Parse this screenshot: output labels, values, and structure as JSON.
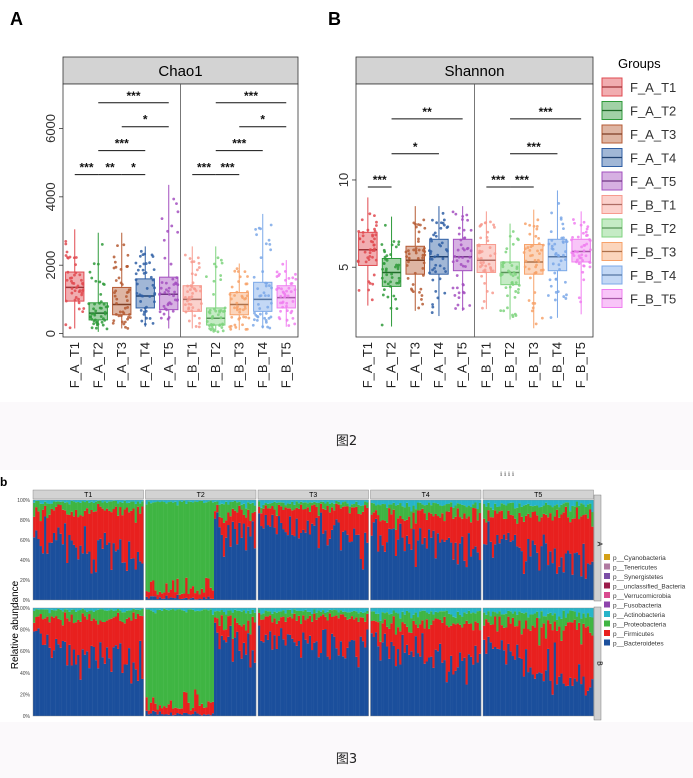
{
  "figure2": {
    "caption": "图2",
    "legend": {
      "title": "Groups",
      "items": [
        "F_A_T1",
        "F_A_T2",
        "F_A_T3",
        "F_A_T4",
        "F_A_T5",
        "F_B_T1",
        "F_B_T2",
        "F_B_T3",
        "F_B_T4",
        "F_B_T5"
      ]
    },
    "colors": [
      "#e0494f",
      "#2e9a3a",
      "#b55a33",
      "#2f5fa5",
      "#a34fbf",
      "#f79a8e",
      "#7ed37e",
      "#f7a26a",
      "#7ba8e8",
      "#f07ef0"
    ],
    "panelA": {
      "letter": "A",
      "strip": "Chao1"
    },
    "panelB": {
      "letter": "B",
      "strip": "Shannon"
    }
  },
  "figure3": {
    "caption": "图3",
    "panel_letter": "b",
    "top_text": "ℹ ℹ ℹ ℹ",
    "ylabel": "Relative abundance",
    "columns": [
      "T1",
      "T2",
      "T3",
      "T4",
      "T5"
    ],
    "rows": [
      "A",
      "B"
    ],
    "yticks": [
      "0%",
      "20%",
      "40%",
      "60%",
      "80%",
      "100%"
    ],
    "legend": [
      {
        "label": "p__Cyanobacteria",
        "color": "#d4a017"
      },
      {
        "label": "p__Tenericutes",
        "color": "#b07aa1"
      },
      {
        "label": "p__Synergistetes",
        "color": "#7b4fa6"
      },
      {
        "label": "p__unclassified_Bacteria",
        "color": "#9b1d4a"
      },
      {
        "label": "p__Verrucomicrobia",
        "color": "#d94b8f"
      },
      {
        "label": "p__Fusobacteria",
        "color": "#8e44ad"
      },
      {
        "label": "p__Actinobacteria",
        "color": "#27b4c9"
      },
      {
        "label": "p__Proteobacteria",
        "color": "#3fb543"
      },
      {
        "label": "p__Firmicutes",
        "color": "#e8201f"
      },
      {
        "label": "p__Bacteroidetes",
        "color": "#1b4f9c"
      }
    ]
  },
  "chart_data": [
    {
      "type": "box",
      "title": "Chao1",
      "categories": [
        "F_A_T1",
        "F_A_T2",
        "F_A_T3",
        "F_A_T4",
        "F_A_T5",
        "F_B_T1",
        "F_B_T2",
        "F_B_T3",
        "F_B_T4",
        "F_B_T5"
      ],
      "ylim": [
        -100,
        7300
      ],
      "yticks": [
        0,
        2000,
        4000,
        6000
      ],
      "boxes": [
        {
          "min": 150,
          "q1": 950,
          "median": 1350,
          "q3": 1800,
          "max": 3050
        },
        {
          "min": 50,
          "q1": 400,
          "median": 600,
          "q3": 900,
          "max": 2950
        },
        {
          "min": 150,
          "q1": 550,
          "median": 850,
          "q3": 1350,
          "max": 2950
        },
        {
          "min": 200,
          "q1": 750,
          "median": 1100,
          "q3": 1600,
          "max": 2550
        },
        {
          "min": 150,
          "q1": 700,
          "median": 1150,
          "q3": 1650,
          "max": 4350
        },
        {
          "min": 150,
          "q1": 650,
          "median": 1000,
          "q3": 1400,
          "max": 2550
        },
        {
          "min": 50,
          "q1": 250,
          "median": 450,
          "q3": 750,
          "max": 2550
        },
        {
          "min": 100,
          "q1": 550,
          "median": 850,
          "q3": 1200,
          "max": 2050
        },
        {
          "min": 150,
          "q1": 650,
          "median": 1000,
          "q3": 1500,
          "max": 3500
        },
        {
          "min": 200,
          "q1": 750,
          "median": 1050,
          "q3": 1400,
          "max": 2150
        }
      ],
      "significance": [
        {
          "from": 0,
          "to": 1,
          "y": 4650,
          "label": "***"
        },
        {
          "from": 1,
          "to": 2,
          "y": 4650,
          "label": "**"
        },
        {
          "from": 2,
          "to": 3,
          "y": 4650,
          "label": "*"
        },
        {
          "from": 1,
          "to": 3,
          "y": 5350,
          "label": "***"
        },
        {
          "from": 2,
          "to": 4,
          "y": 6050,
          "label": "*"
        },
        {
          "from": 1,
          "to": 4,
          "y": 6750,
          "label": "***"
        },
        {
          "from": 5,
          "to": 6,
          "y": 4650,
          "label": "***"
        },
        {
          "from": 6,
          "to": 7,
          "y": 4650,
          "label": "***"
        },
        {
          "from": 6,
          "to": 8,
          "y": 5350,
          "label": "***"
        },
        {
          "from": 7,
          "to": 9,
          "y": 6050,
          "label": "*"
        },
        {
          "from": 6,
          "to": 9,
          "y": 6750,
          "label": "***"
        }
      ]
    },
    {
      "type": "box",
      "title": "Shannon",
      "categories": [
        "F_A_T1",
        "F_A_T2",
        "F_A_T3",
        "F_A_T4",
        "F_A_T5",
        "F_B_T1",
        "F_B_T2",
        "F_B_T3",
        "F_B_T4",
        "F_B_T5"
      ],
      "ylim": [
        1,
        15.5
      ],
      "yticks": [
        5,
        10
      ],
      "boxes": [
        {
          "min": 2.8,
          "q1": 5.1,
          "median": 6,
          "q3": 7,
          "max": 9
        },
        {
          "min": 1.6,
          "q1": 3.9,
          "median": 4.7,
          "q3": 5.5,
          "max": 7.9
        },
        {
          "min": 2.5,
          "q1": 4.6,
          "median": 5.4,
          "q3": 6.2,
          "max": 8.5
        },
        {
          "min": 2.2,
          "q1": 4.6,
          "median": 5.6,
          "q3": 6.6,
          "max": 8.5
        },
        {
          "min": 2.5,
          "q1": 4.8,
          "median": 5.6,
          "q3": 6.6,
          "max": 8.5
        },
        {
          "min": 2.6,
          "q1": 4.7,
          "median": 5.4,
          "q3": 6.3,
          "max": 8.2
        },
        {
          "min": 2,
          "q1": 4,
          "median": 4.7,
          "q3": 5.3,
          "max": 7.5
        },
        {
          "min": 1.5,
          "q1": 4.6,
          "median": 5.3,
          "q3": 6.3,
          "max": 8.3
        },
        {
          "min": 2.1,
          "q1": 4.8,
          "median": 5.6,
          "q3": 6.6,
          "max": 9.4
        },
        {
          "min": 2.3,
          "q1": 5.3,
          "median": 5.9,
          "q3": 6.6,
          "max": 8.2
        }
      ],
      "significance": [
        {
          "from": 0,
          "to": 1,
          "y": 9.6,
          "label": "***"
        },
        {
          "from": 1,
          "to": 3,
          "y": 11.5,
          "label": "*"
        },
        {
          "from": 1,
          "to": 4,
          "y": 13.5,
          "label": "**"
        },
        {
          "from": 5,
          "to": 6,
          "y": 9.6,
          "label": "***"
        },
        {
          "from": 6,
          "to": 7,
          "y": 9.6,
          "label": "***"
        },
        {
          "from": 6,
          "to": 8,
          "y": 11.5,
          "label": "***"
        },
        {
          "from": 6,
          "to": 9,
          "y": 13.5,
          "label": "***"
        }
      ]
    },
    {
      "type": "bar",
      "stacked": true,
      "title": "",
      "ylabel": "Relative abundance",
      "facets": {
        "columns": [
          "T1",
          "T2",
          "T3",
          "T4",
          "T5"
        ],
        "rows": [
          "A",
          "B"
        ]
      },
      "series": [
        {
          "name": "p__Bacteroidetes",
          "mean_share": [
            0.55,
            0.2,
            0.7,
            0.6,
            0.5
          ]
        },
        {
          "name": "p__Firmicutes",
          "mean_share": [
            0.35,
            0.1,
            0.22,
            0.25,
            0.35
          ]
        },
        {
          "name": "p__Proteobacteria",
          "mean_share": [
            0.08,
            0.68,
            0.05,
            0.1,
            0.1
          ]
        },
        {
          "name": "p__Actinobacteria",
          "mean_share": [
            0.02,
            0.02,
            0.03,
            0.05,
            0.05
          ]
        }
      ]
    }
  ]
}
